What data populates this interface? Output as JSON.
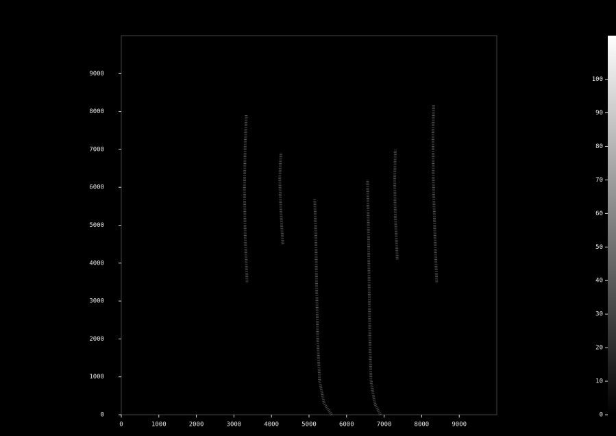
{
  "chart_data": {
    "type": "image",
    "xlim": [
      0,
      10000
    ],
    "xticks": [
      0,
      1000,
      2000,
      3000,
      4000,
      5000,
      6000,
      7000,
      8000,
      9000
    ],
    "ylim": [
      0,
      10000
    ],
    "yticks": [
      0,
      1000,
      2000,
      3000,
      4000,
      5000,
      6000,
      7000,
      8000,
      9000
    ],
    "clim": [
      0,
      113
    ],
    "cticks": [
      0,
      10,
      20,
      30,
      40,
      50,
      60,
      70,
      80,
      90,
      100
    ],
    "color": "#6a6a6a",
    "series": [
      {
        "x": [
          3350,
          3300,
          3280,
          3300,
          3330
        ],
        "y": [
          3500,
          4700,
          6000,
          7100,
          7900
        ]
      },
      {
        "x": [
          4300,
          4250,
          4220,
          4250
        ],
        "y": [
          4500,
          5400,
          6200,
          6900
        ]
      },
      {
        "x": [
          5600,
          5400,
          5280,
          5230,
          5200,
          5180,
          5150
        ],
        "y": [
          0,
          300,
          900,
          2000,
          3500,
          4800,
          5700
        ]
      },
      {
        "x": [
          6900,
          6750,
          6650,
          6620,
          6600,
          6580,
          6560
        ],
        "y": [
          0,
          300,
          900,
          2000,
          3500,
          5000,
          6200
        ]
      },
      {
        "x": [
          7350,
          7300,
          7280,
          7300
        ],
        "y": [
          4100,
          5200,
          6200,
          7000
        ]
      },
      {
        "x": [
          8400,
          8350,
          8310,
          8300,
          8320
        ],
        "y": [
          3500,
          4800,
          6200,
          7400,
          8200
        ]
      }
    ]
  }
}
